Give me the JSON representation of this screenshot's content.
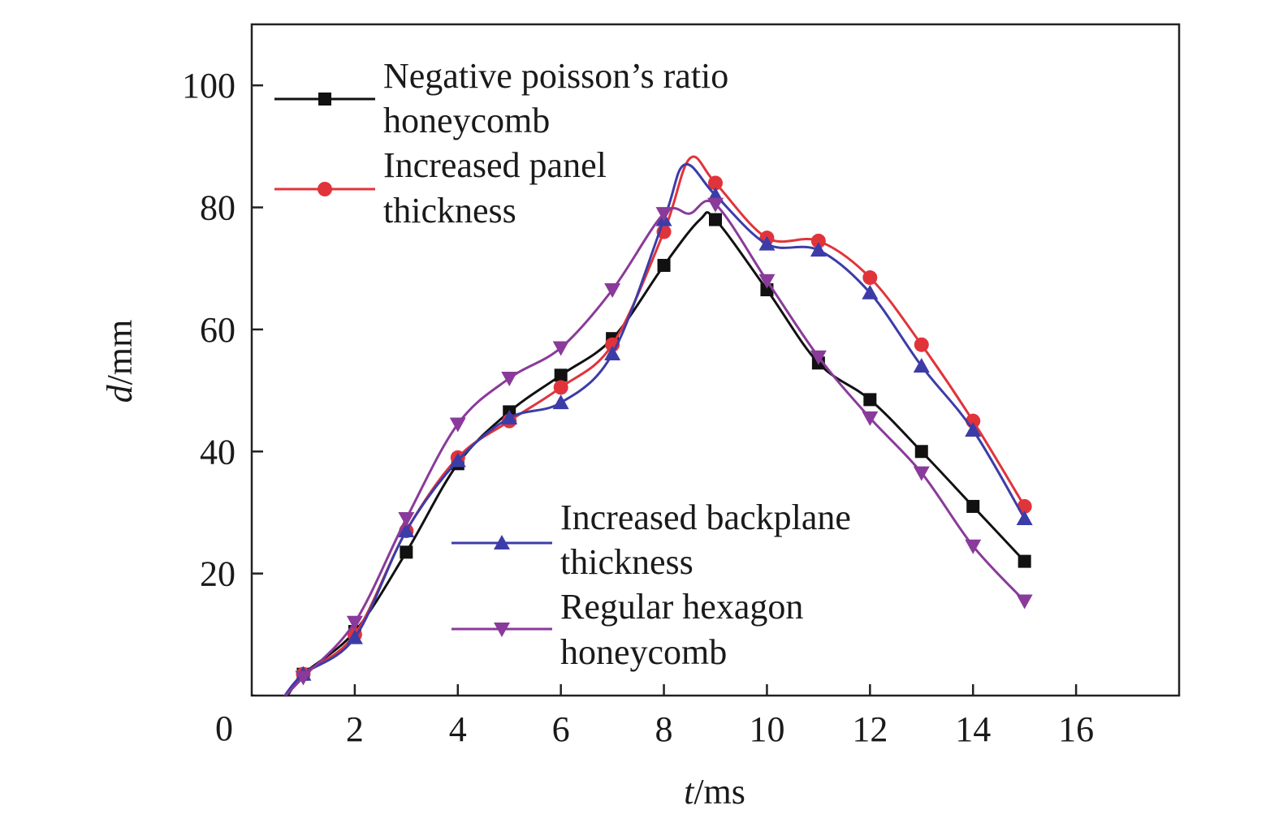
{
  "chart_data": {
    "type": "line",
    "xlabel": {
      "var": "t",
      "unit": "/ms"
    },
    "ylabel": {
      "var": "d",
      "unit": "/mm"
    },
    "xlim": [
      0,
      18
    ],
    "ylim": [
      0,
      110
    ],
    "x_ticks": [
      0,
      2,
      4,
      6,
      8,
      10,
      12,
      14,
      16
    ],
    "y_ticks": [
      20,
      40,
      60,
      80,
      100
    ],
    "origin_label": "0",
    "grid": false,
    "series": [
      {
        "name": "Negative poisson’s ratio honeycomb",
        "name_lines": [
          "Negative poisson’s ratio",
          "honeycomb"
        ],
        "color": "#111111",
        "marker": "square",
        "x": [
          0,
          0.6,
          1,
          2,
          3,
          4,
          5,
          6,
          7,
          8,
          8.7,
          9,
          10,
          11,
          12,
          13,
          14,
          15
        ],
        "y": [
          0,
          -0.5,
          3.5,
          10.5,
          23.5,
          38,
          46.5,
          52.5,
          58.5,
          70.5,
          78,
          78,
          66.5,
          54.5,
          48.5,
          40,
          31,
          22
        ]
      },
      {
        "name": "Increased panel thickness",
        "name_lines": [
          "Increased panel",
          "thickness"
        ],
        "color": "#e0343a",
        "marker": "circle",
        "x": [
          0.6,
          1,
          2,
          3,
          4,
          5,
          6,
          7,
          8,
          8.5,
          9,
          10,
          11,
          12,
          13,
          14,
          15
        ],
        "y": [
          -0.5,
          3.5,
          10,
          27,
          39,
          45,
          50.5,
          57.5,
          76,
          88,
          84,
          75,
          74.5,
          68.5,
          57.5,
          45,
          31
        ]
      },
      {
        "name": "Increased backplane thickness",
        "name_lines": [
          "Increased backplane",
          "thickness"
        ],
        "color": "#3c3ca8",
        "marker": "triangle-up",
        "x": [
          0.6,
          1,
          2,
          3,
          4,
          5,
          6,
          7,
          8,
          8.4,
          9,
          10,
          11,
          12,
          13,
          14,
          15
        ],
        "y": [
          -0.5,
          3.5,
          9.5,
          27,
          38.5,
          45.5,
          48,
          56,
          78,
          87,
          82,
          74,
          73,
          66,
          54,
          43.5,
          29
        ]
      },
      {
        "name": "Regular hexagon honeycomb",
        "name_lines": [
          "Regular hexagon",
          "honeycomb"
        ],
        "color": "#8a3a9a",
        "marker": "triangle-down",
        "x": [
          0.6,
          1,
          2,
          3,
          4,
          5,
          6,
          7,
          8,
          8.5,
          9,
          10,
          11,
          12,
          13,
          14,
          15
        ],
        "y": [
          -0.5,
          3,
          12,
          29,
          44.5,
          52,
          57,
          66.5,
          79,
          79,
          80.5,
          68,
          55.5,
          45.5,
          36.5,
          24.5,
          15.5
        ]
      }
    ],
    "legend": [
      {
        "series_index": 0,
        "placement": "top-left"
      },
      {
        "series_index": 1,
        "placement": "top-left"
      },
      {
        "series_index": 2,
        "placement": "bottom-center"
      },
      {
        "series_index": 3,
        "placement": "bottom-center"
      }
    ]
  }
}
